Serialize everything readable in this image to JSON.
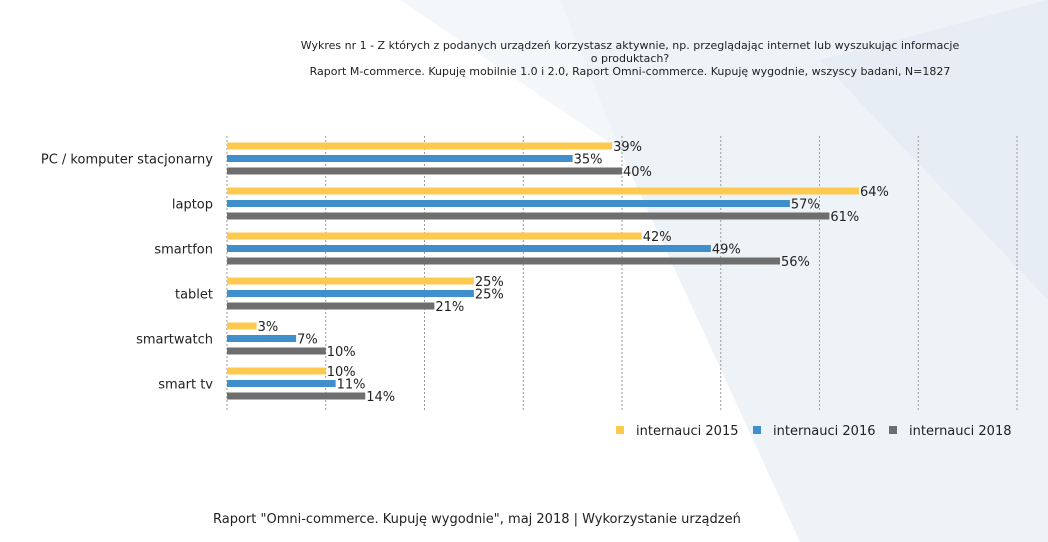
{
  "colors": {
    "s2015": "#FDCA4F",
    "s2016": "#3E8FCB",
    "s2018": "#6E6E6E",
    "grid": "#9a9a9a",
    "background_shape": "#EEF3F8"
  },
  "header": {
    "line1": "Wykres nr 1 - Z których z podanych urządzeń korzystasz aktywnie, np. przeglądając internet lub wyszukując informacje",
    "line2": "o produktach?",
    "line3": "Raport M-commerce. Kupuję mobilnie 1.0 i 2.0, Raport Omni-commerce. Kupuję wygodnie, wszyscy badani, N=1827"
  },
  "chart_data": {
    "type": "bar",
    "orientation": "horizontal",
    "categories": [
      "PC / komputer stacjonarny",
      "laptop",
      "smartfon",
      "tablet",
      "smartwatch",
      "smart tv"
    ],
    "series": [
      {
        "name": "internauci 2015",
        "color": "#FDCA4F",
        "values": [
          39,
          64,
          42,
          25,
          3,
          10
        ],
        "labels": [
          "39%",
          "64%",
          "42%",
          "25%",
          "3%",
          "10%"
        ]
      },
      {
        "name": "internauci 2016",
        "color": "#3E8FCB",
        "values": [
          35,
          57,
          49,
          25,
          7,
          11
        ],
        "labels": [
          "35%",
          "57%",
          "49%",
          "25%",
          "7%",
          "11%"
        ]
      },
      {
        "name": "internauci 2018",
        "color": "#6E6E6E",
        "values": [
          40,
          61,
          56,
          21,
          10,
          14
        ],
        "labels": [
          "40%",
          "61%",
          "56%",
          "21%",
          "10%",
          "14%"
        ]
      }
    ],
    "xlim": [
      0,
      80
    ],
    "grid": true,
    "legend_position": "bottom-right",
    "xlabel": "",
    "ylabel": ""
  },
  "footer": {
    "text": "Raport \"Omni-commerce. Kupuję wygodnie\", maj 2018 | Wykorzystanie urządzeń"
  }
}
